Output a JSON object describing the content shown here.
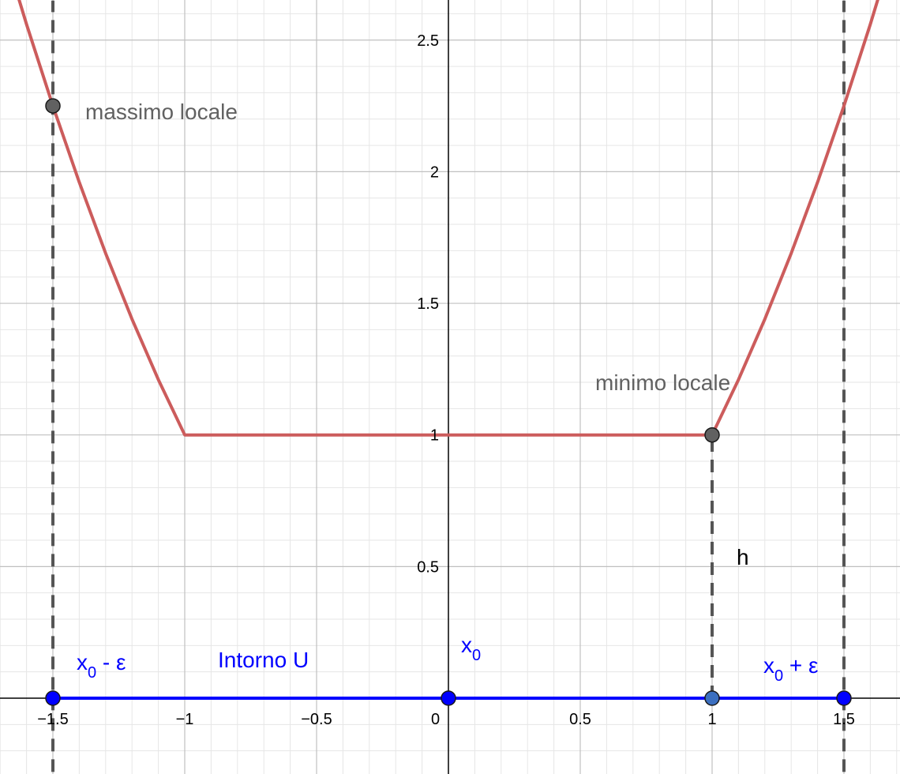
{
  "chart_data": {
    "type": "line",
    "xlim": [
      -1.7,
      1.71
    ],
    "ylim": [
      -0.28,
      2.65
    ],
    "grid": true,
    "x_ticks": [
      {
        "value": -1.5,
        "label": "−1.5"
      },
      {
        "value": -1,
        "label": "−1"
      },
      {
        "value": -0.5,
        "label": "−0.5"
      },
      {
        "value": 0,
        "label": "0"
      },
      {
        "value": 0.5,
        "label": "0.5"
      },
      {
        "value": 1,
        "label": "1"
      },
      {
        "value": 1.5,
        "label": "1.5"
      }
    ],
    "y_ticks": [
      {
        "value": 0.5,
        "label": "0.5"
      },
      {
        "value": 1,
        "label": "1"
      },
      {
        "value": 1.5,
        "label": "1.5"
      },
      {
        "value": 2,
        "label": "2"
      },
      {
        "value": 2.5,
        "label": "2.5"
      }
    ],
    "function": {
      "color": "#cc5c5c",
      "points": [
        [
          -1.7,
          2.89
        ],
        [
          -1.6,
          2.56
        ],
        [
          -1.5,
          2.25
        ],
        [
          -1.4,
          1.96
        ],
        [
          -1.3,
          1.69
        ],
        [
          -1.2,
          1.44
        ],
        [
          -1.1,
          1.21
        ],
        [
          -1.0,
          1.0
        ],
        [
          1.0,
          1.0
        ],
        [
          1.1,
          1.21
        ],
        [
          1.2,
          1.44
        ],
        [
          1.3,
          1.69
        ],
        [
          1.4,
          1.96
        ],
        [
          1.5,
          2.25
        ],
        [
          1.6,
          2.56
        ],
        [
          1.7,
          2.89
        ]
      ]
    },
    "vertical_dashed_lines": [
      {
        "x": -1.5,
        "y_from": -0.28,
        "y_to": 2.65
      },
      {
        "x": 1.5,
        "y_from": -0.28,
        "y_to": 2.65
      },
      {
        "x": 1,
        "y_from": 0,
        "y_to": 1
      }
    ],
    "interval": {
      "x_from": -1.5,
      "x_to": 1.5,
      "y": 0,
      "color": "#0000ff"
    },
    "points": [
      {
        "name": "massimo-locale-point",
        "x": -1.5,
        "y": 2.25,
        "color": "#616161"
      },
      {
        "name": "minimo-locale-point",
        "x": 1,
        "y": 1,
        "color": "#616161"
      },
      {
        "name": "x0-minus-eps-point",
        "x": -1.5,
        "y": 0,
        "color": "#0000ff"
      },
      {
        "name": "x0-point",
        "x": 0,
        "y": 0,
        "color": "#0000ff"
      },
      {
        "name": "x1-point",
        "x": 1,
        "y": 0,
        "color": "#3b6fc0"
      },
      {
        "name": "x0-plus-eps-point",
        "x": 1.5,
        "y": 0,
        "color": "#0000ff"
      }
    ],
    "annotations": {
      "massimo": "massimo locale",
      "minimo": "minimo locale",
      "h": "h",
      "intorno": "Intorno U",
      "x0_left_main": "x",
      "x0_left_sub": "0",
      "x0_left_rest": " - ε",
      "x0_center_main": "x",
      "x0_center_sub": "0",
      "x0_right_main": "x",
      "x0_right_sub": "0",
      "x0_right_rest": " + ε"
    },
    "colors": {
      "curve": "#cc5c5c",
      "dashed": "#555555",
      "axis": "#000000",
      "grid_major": "#c0c0c0",
      "grid_minor": "#e6e6e6",
      "interval": "#0000ff"
    }
  }
}
